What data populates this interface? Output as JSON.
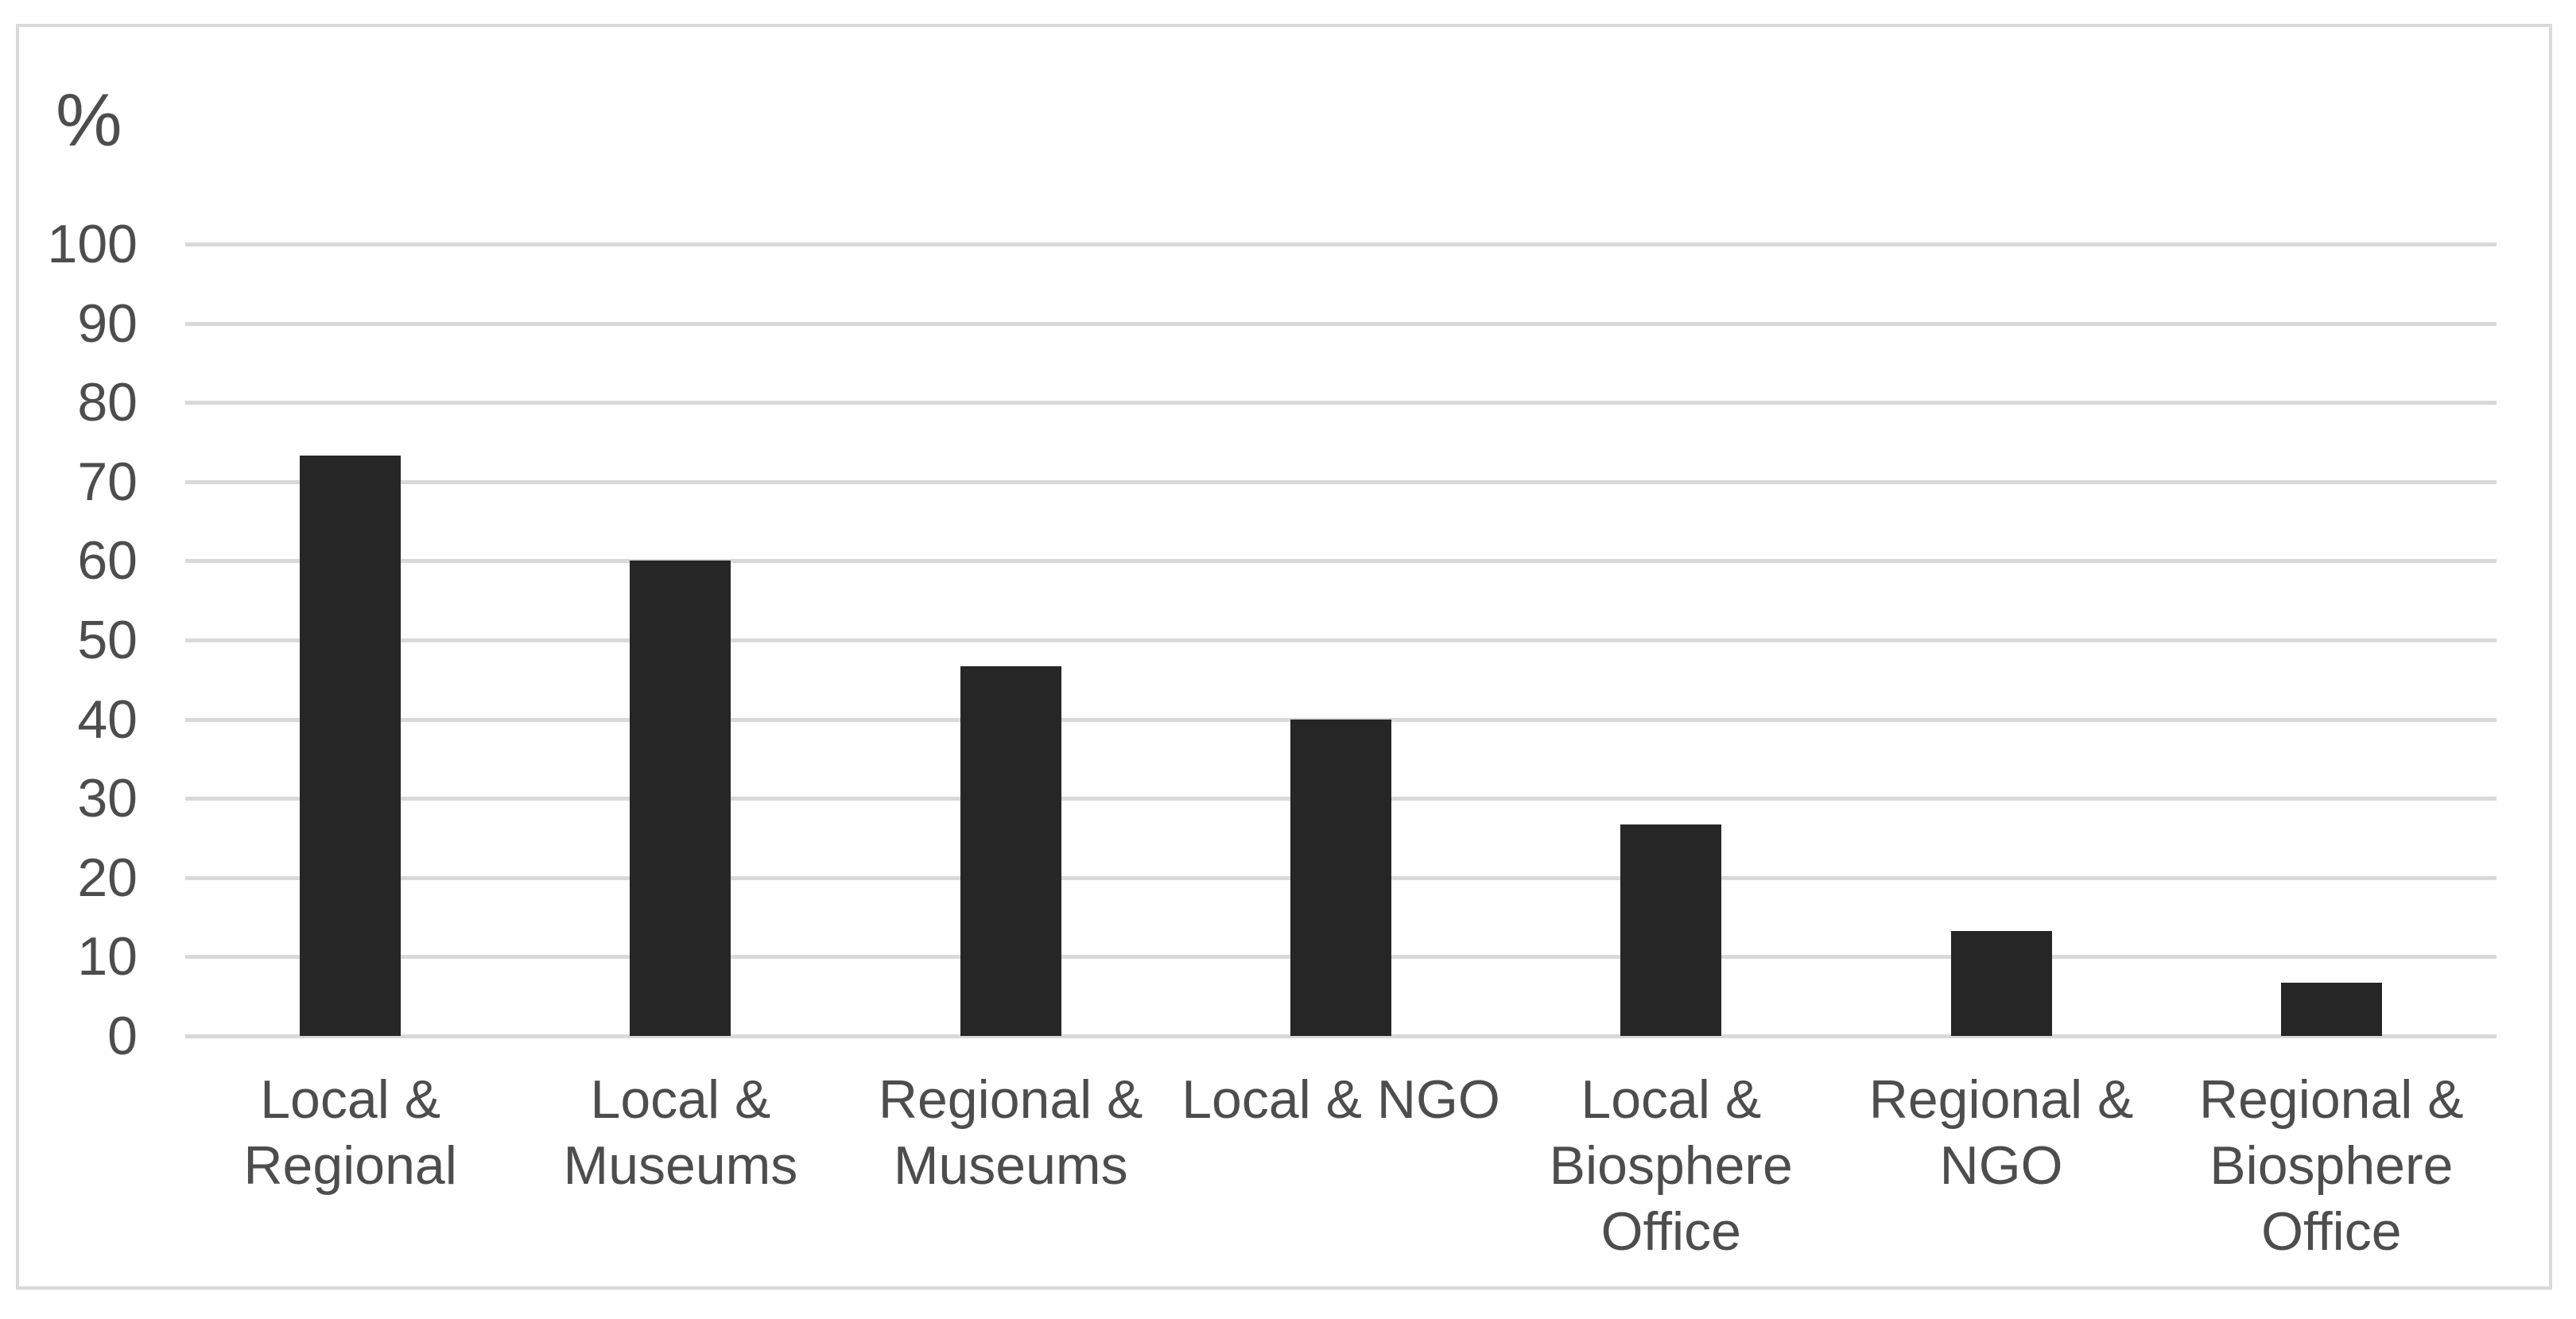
{
  "chart_data": {
    "type": "bar",
    "title": "",
    "ylabel": "%",
    "xlabel": "",
    "categories": [
      "Local &\nRegional",
      "Local &\nMuseums",
      "Regional &\nMuseums",
      "Local & NGO",
      "Local &\nBiosphere\nOffice",
      "Regional &\nNGO",
      "Regional &\nBiosphere\nOffice"
    ],
    "values": [
      73.3,
      60,
      46.7,
      40,
      26.7,
      13.3,
      6.7
    ],
    "yticks": [
      0,
      10,
      20,
      30,
      40,
      50,
      60,
      70,
      80,
      90,
      100
    ],
    "ylim": [
      0,
      100
    ],
    "grid": true,
    "legend": false,
    "bar_color": "#262626",
    "gridline_color": "#d9d9d9",
    "border_color": "#d9d9d9",
    "text_color": "#4d4d4d"
  }
}
